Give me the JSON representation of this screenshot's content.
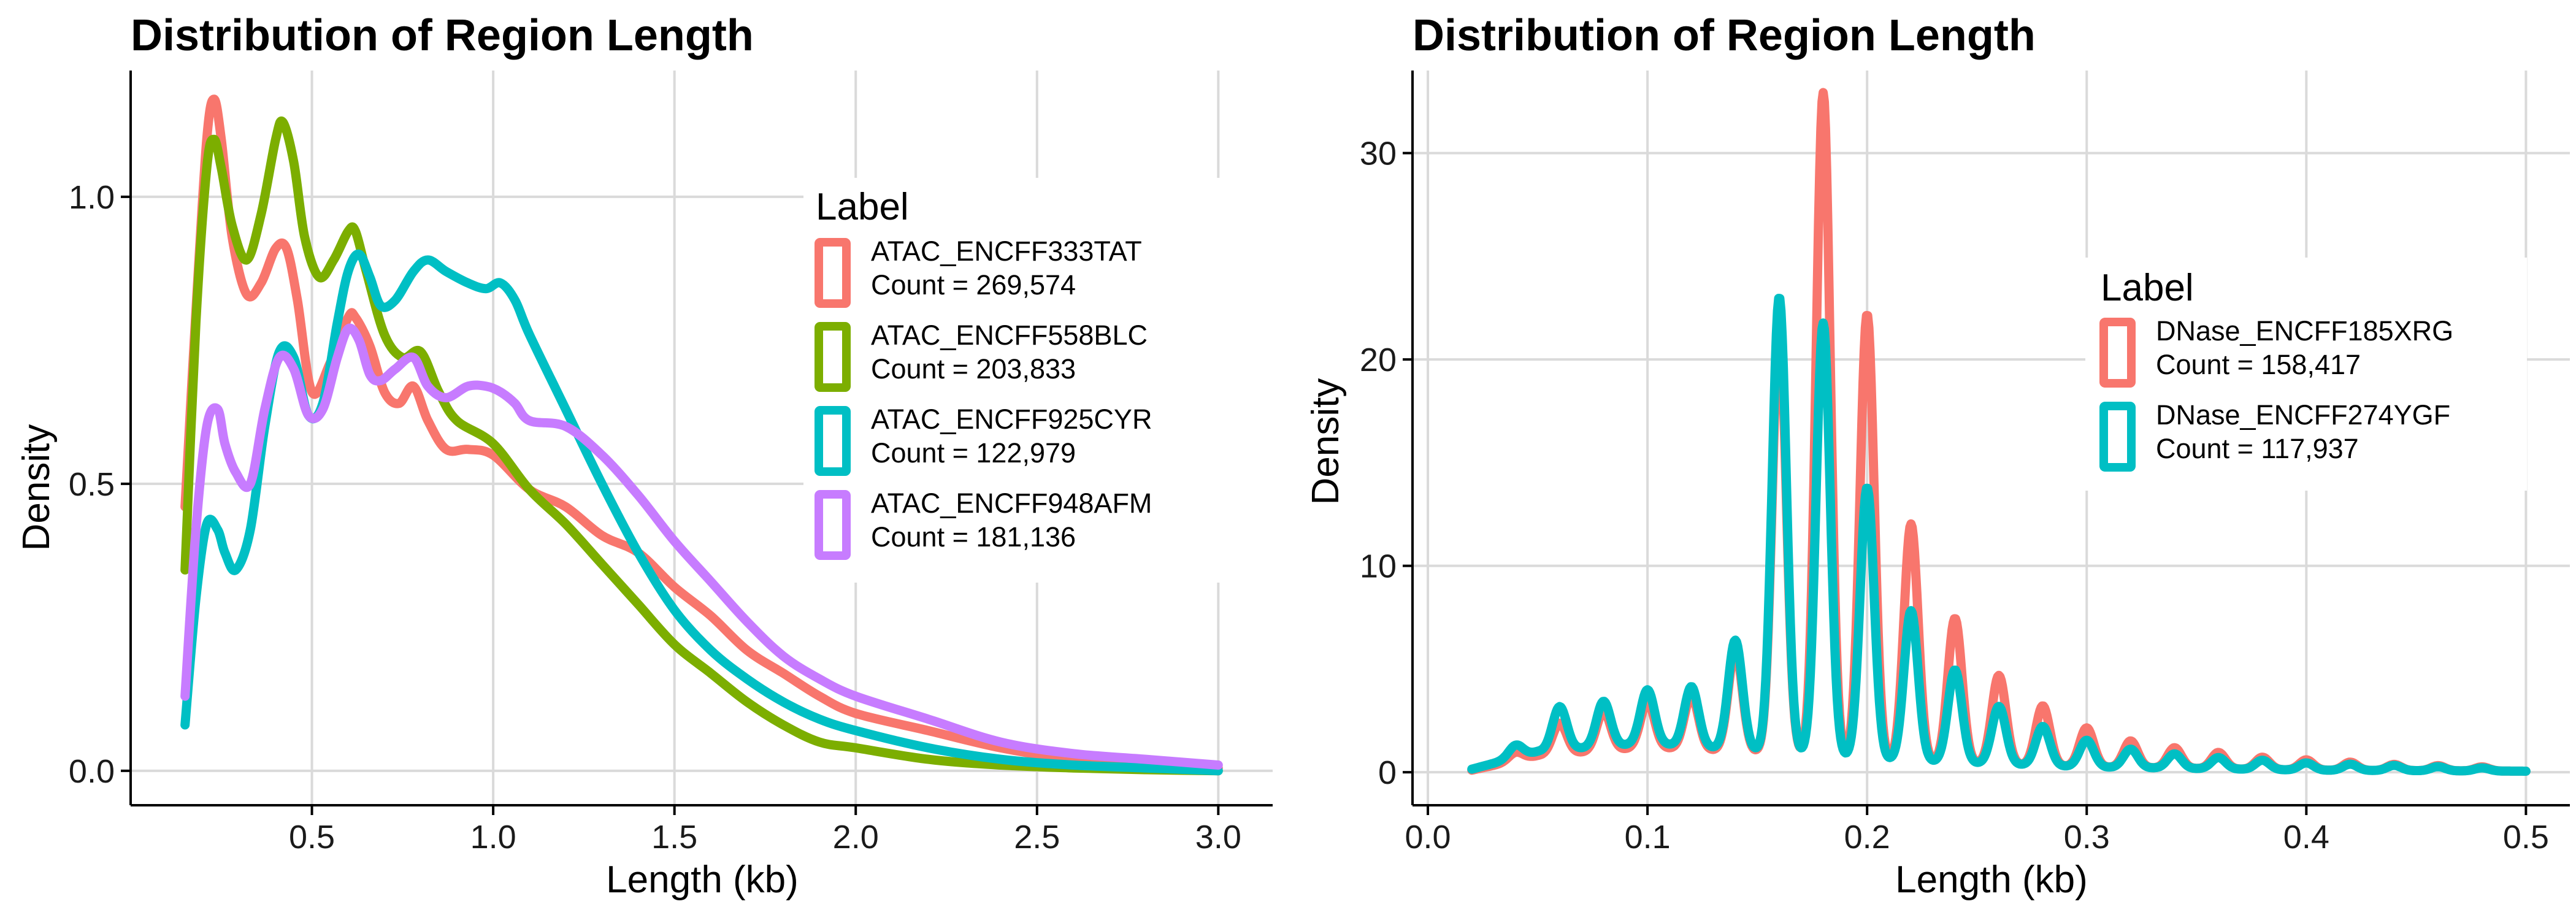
{
  "chart_data": [
    {
      "type": "line",
      "title": "Distribution of Region Length",
      "xlabel": "Length (kb)",
      "ylabel": "Density",
      "xlim": [
        0.0,
        3.15
      ],
      "ylim": [
        -0.06,
        1.22
      ],
      "xticks": [
        0.5,
        1.0,
        1.5,
        2.0,
        2.5,
        3.0
      ],
      "xtick_labels": [
        "0.5",
        "1.0",
        "1.5",
        "2.0",
        "2.5",
        "3.0"
      ],
      "yticks": [
        0.0,
        0.5,
        1.0
      ],
      "ytick_labels": [
        "0.0",
        "0.5",
        "1.0"
      ],
      "grid": true,
      "legend": {
        "title": "Label",
        "position": "right",
        "entries": [
          {
            "name": "ATAC_ENCFF333TAT",
            "count": "Count = 269,574"
          },
          {
            "name": "ATAC_ENCFF558BLC",
            "count": "Count = 203,833"
          },
          {
            "name": "ATAC_ENCFF925CYR",
            "count": "Count = 122,979"
          },
          {
            "name": "ATAC_ENCFF948AFM",
            "count": "Count = 181,136"
          }
        ]
      },
      "series": [
        {
          "name": "ATAC_ENCFF333TAT",
          "color": "#F8766D",
          "x": [
            0.15,
            0.18,
            0.21,
            0.23,
            0.25,
            0.28,
            0.32,
            0.36,
            0.4,
            0.43,
            0.46,
            0.5,
            0.55,
            0.6,
            0.62,
            0.66,
            0.7,
            0.74,
            0.78,
            0.82,
            0.87,
            0.93,
            1.0,
            1.1,
            1.2,
            1.3,
            1.4,
            1.5,
            1.6,
            1.7,
            1.8,
            1.9,
            2.0,
            2.2,
            2.4,
            2.6,
            2.8,
            3.0
          ],
          "y": [
            0.46,
            0.8,
            1.1,
            1.17,
            1.1,
            0.93,
            0.83,
            0.85,
            0.91,
            0.91,
            0.82,
            0.66,
            0.71,
            0.79,
            0.79,
            0.74,
            0.66,
            0.64,
            0.67,
            0.61,
            0.56,
            0.56,
            0.55,
            0.49,
            0.46,
            0.41,
            0.38,
            0.32,
            0.27,
            0.21,
            0.17,
            0.13,
            0.1,
            0.07,
            0.04,
            0.02,
            0.01,
            0.005
          ]
        },
        {
          "name": "ATAC_ENCFF558BLC",
          "color": "#7CAE00",
          "x": [
            0.15,
            0.18,
            0.21,
            0.23,
            0.25,
            0.28,
            0.32,
            0.36,
            0.4,
            0.42,
            0.45,
            0.48,
            0.52,
            0.56,
            0.6,
            0.62,
            0.65,
            0.7,
            0.75,
            0.8,
            0.85,
            0.9,
            1.0,
            1.1,
            1.2,
            1.3,
            1.4,
            1.5,
            1.6,
            1.7,
            1.8,
            1.9,
            2.0,
            2.2,
            2.4,
            2.6,
            2.8,
            3.0
          ],
          "y": [
            0.35,
            0.78,
            1.05,
            1.1,
            1.05,
            0.95,
            0.89,
            0.97,
            1.1,
            1.13,
            1.06,
            0.93,
            0.86,
            0.89,
            0.94,
            0.94,
            0.87,
            0.76,
            0.72,
            0.73,
            0.66,
            0.61,
            0.57,
            0.49,
            0.43,
            0.36,
            0.29,
            0.22,
            0.17,
            0.12,
            0.08,
            0.05,
            0.04,
            0.02,
            0.01,
            0.005,
            0.002,
            0.0
          ]
        },
        {
          "name": "ATAC_ENCFF925CYR",
          "color": "#00BFC4",
          "x": [
            0.15,
            0.18,
            0.21,
            0.24,
            0.26,
            0.29,
            0.33,
            0.37,
            0.41,
            0.45,
            0.49,
            0.53,
            0.57,
            0.6,
            0.63,
            0.66,
            0.69,
            0.73,
            0.78,
            0.82,
            0.87,
            0.93,
            0.98,
            1.02,
            1.06,
            1.1,
            1.2,
            1.3,
            1.4,
            1.5,
            1.6,
            1.7,
            1.8,
            1.9,
            2.0,
            2.2,
            2.4,
            2.6,
            2.8,
            3.0
          ],
          "y": [
            0.08,
            0.3,
            0.43,
            0.42,
            0.38,
            0.35,
            0.42,
            0.6,
            0.73,
            0.72,
            0.62,
            0.64,
            0.78,
            0.87,
            0.9,
            0.86,
            0.81,
            0.82,
            0.87,
            0.89,
            0.87,
            0.85,
            0.84,
            0.85,
            0.82,
            0.76,
            0.63,
            0.5,
            0.38,
            0.28,
            0.21,
            0.16,
            0.12,
            0.09,
            0.07,
            0.04,
            0.02,
            0.01,
            0.005,
            0.0
          ]
        },
        {
          "name": "ATAC_ENCFF948AFM",
          "color": "#C77CFF",
          "x": [
            0.15,
            0.18,
            0.21,
            0.24,
            0.26,
            0.29,
            0.33,
            0.37,
            0.41,
            0.45,
            0.49,
            0.53,
            0.57,
            0.6,
            0.63,
            0.66,
            0.69,
            0.73,
            0.78,
            0.82,
            0.87,
            0.93,
            0.98,
            1.02,
            1.06,
            1.1,
            1.2,
            1.3,
            1.4,
            1.5,
            1.6,
            1.7,
            1.8,
            1.9,
            2.0,
            2.2,
            2.4,
            2.6,
            2.8,
            3.0
          ],
          "y": [
            0.13,
            0.42,
            0.6,
            0.63,
            0.57,
            0.52,
            0.5,
            0.63,
            0.72,
            0.7,
            0.62,
            0.63,
            0.72,
            0.77,
            0.75,
            0.69,
            0.68,
            0.7,
            0.72,
            0.67,
            0.65,
            0.67,
            0.67,
            0.66,
            0.64,
            0.61,
            0.6,
            0.55,
            0.48,
            0.4,
            0.33,
            0.26,
            0.2,
            0.16,
            0.13,
            0.09,
            0.05,
            0.03,
            0.02,
            0.01
          ]
        }
      ]
    },
    {
      "type": "line",
      "title": "Distribution of Region Length",
      "xlabel": "Length (kb)",
      "ylabel": "Density",
      "xlim": [
        -0.007,
        0.52
      ],
      "ylim": [
        -1.6,
        34.0
      ],
      "xticks": [
        0.0,
        0.1,
        0.2,
        0.3,
        0.4,
        0.5
      ],
      "xtick_labels": [
        "0.0",
        "0.1",
        "0.2",
        "0.3",
        "0.4",
        "0.5"
      ],
      "yticks": [
        0,
        10,
        20,
        30
      ],
      "ytick_labels": [
        "0",
        "10",
        "20",
        "30"
      ],
      "grid": true,
      "legend": {
        "title": "Label",
        "position": "right",
        "entries": [
          {
            "name": "DNase_ENCFF185XRG",
            "count": "Count = 158,417"
          },
          {
            "name": "DNase_ENCFF274YGF",
            "count": "Count = 117,937"
          }
        ]
      },
      "series": [
        {
          "name": "DNase_ENCFF185XRG",
          "color": "#F8766D",
          "peaks": [
            [
              0.04,
              0.4
            ],
            [
              0.06,
              1.5
            ],
            [
              0.08,
              1.9
            ],
            [
              0.1,
              2.2
            ],
            [
              0.12,
              2.6
            ],
            [
              0.14,
              4.9
            ],
            [
              0.16,
              20.5
            ],
            [
              0.18,
              32.2
            ],
            [
              0.2,
              21.6
            ],
            [
              0.22,
              11.5
            ],
            [
              0.24,
              7.0
            ],
            [
              0.26,
              4.3
            ],
            [
              0.28,
              2.9
            ],
            [
              0.3,
              1.9
            ],
            [
              0.32,
              1.3
            ],
            [
              0.34,
              1.0
            ],
            [
              0.36,
              0.8
            ],
            [
              0.38,
              0.6
            ],
            [
              0.4,
              0.5
            ],
            [
              0.42,
              0.4
            ],
            [
              0.44,
              0.3
            ],
            [
              0.46,
              0.25
            ],
            [
              0.48,
              0.2
            ]
          ],
          "baseline": [
            [
              0.02,
              0.1
            ],
            [
              0.05,
              0.8
            ],
            [
              0.1,
              1.2
            ],
            [
              0.14,
              1.0
            ],
            [
              0.2,
              0.6
            ],
            [
              0.3,
              0.25
            ],
            [
              0.4,
              0.1
            ],
            [
              0.5,
              0.05
            ]
          ],
          "x_range": [
            0.02,
            0.5
          ]
        },
        {
          "name": "DNase_ENCFF274YGF",
          "color": "#00BFC4",
          "peaks": [
            [
              0.04,
              0.6
            ],
            [
              0.06,
              2.1
            ],
            [
              0.08,
              2.2
            ],
            [
              0.1,
              2.6
            ],
            [
              0.12,
              2.9
            ],
            [
              0.14,
              5.3
            ],
            [
              0.16,
              22.1
            ],
            [
              0.18,
              21.0
            ],
            [
              0.2,
              13.2
            ],
            [
              0.22,
              7.3
            ],
            [
              0.24,
              4.5
            ],
            [
              0.26,
              2.8
            ],
            [
              0.28,
              1.9
            ],
            [
              0.3,
              1.3
            ],
            [
              0.32,
              0.9
            ],
            [
              0.34,
              0.7
            ],
            [
              0.36,
              0.55
            ],
            [
              0.38,
              0.45
            ],
            [
              0.4,
              0.35
            ],
            [
              0.42,
              0.3
            ],
            [
              0.44,
              0.25
            ],
            [
              0.46,
              0.2
            ],
            [
              0.48,
              0.15
            ]
          ],
          "baseline": [
            [
              0.02,
              0.15
            ],
            [
              0.05,
              1.0
            ],
            [
              0.1,
              1.4
            ],
            [
              0.14,
              1.1
            ],
            [
              0.2,
              0.6
            ],
            [
              0.3,
              0.25
            ],
            [
              0.4,
              0.1
            ],
            [
              0.5,
              0.05
            ]
          ],
          "x_range": [
            0.02,
            0.5
          ]
        }
      ]
    }
  ]
}
